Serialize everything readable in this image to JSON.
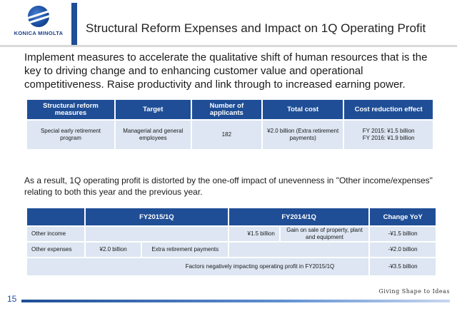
{
  "header": {
    "logo_text": "KONICA MINOLTA",
    "title": "Structural Reform Expenses and Impact on 1Q Operating Profit"
  },
  "lead": "Implement measures to accelerate the qualitative shift of human resources that is the key to driving change and to enhancing customer value and operational competitiveness. Raise productivity and link through to increased earning power.",
  "table1": {
    "headers": [
      "Structural reform measures",
      "Target",
      "Number of applicants",
      "Total cost",
      "Cost reduction effect"
    ],
    "row": {
      "measure": "Special early retirement program",
      "target": "Managerial and general employees",
      "applicants": "182",
      "cost": "¥2.0 billion (Extra retirement payments)",
      "effect_1": "FY 2015: ¥1.5 billion",
      "effect_2": "FY 2016: ¥1.9 billion"
    }
  },
  "result_text": "As a result, 1Q operating profit is distorted by the one-off impact of unevenness in \"Other income/expenses\" relating to both this year and the previous year.",
  "table2": {
    "headers": [
      "FY2015/1Q",
      "FY2014/1Q",
      "Change YoY"
    ],
    "rows": [
      {
        "label": "Other income",
        "fy14_value": "¥1.5 billion",
        "fy14_note": "Gain on sale of property, plant and equipment",
        "change": "-¥1.5 billion"
      },
      {
        "label": "Other expenses",
        "fy15_value": "¥2.0 billion",
        "fy15_note": "Extra retirement payments",
        "change": "-¥2.0 billion"
      },
      {
        "label": "Factors negatively impacting operating profit in FY2015/1Q",
        "change": "-¥3.5 billion"
      }
    ]
  },
  "footer": {
    "page_number": "15",
    "tagline": "Giving Shape to Ideas"
  },
  "colors": {
    "brand_blue": "#1f4e96",
    "table_fill": "#dde6f2"
  }
}
